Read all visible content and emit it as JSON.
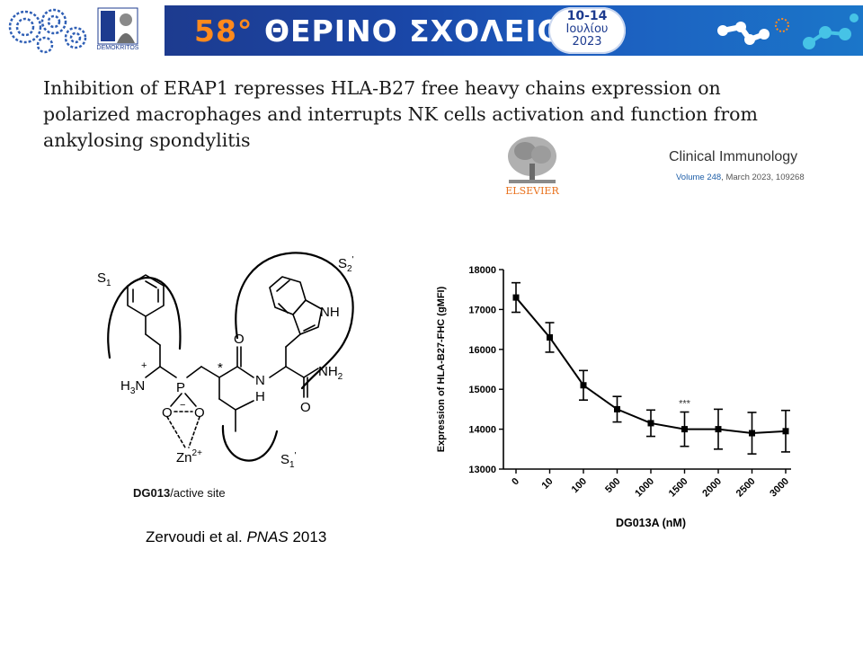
{
  "banner": {
    "number": "58°",
    "title": "ΘΕΡΙΝΟ ΣΧΟΛΕΙΟ",
    "dates": "10-14",
    "month": "Ιουλίου",
    "year": "2023",
    "logo_caption": "DEMOKRITOS",
    "colors": {
      "bar": "#1d3b8f",
      "accent": "#ff8a1c"
    }
  },
  "paper": {
    "title": "Inhibition of ERAP1 represses HLA-B27 free heavy chains expression on polarized macrophages and interrupts NK cells activation and function from ankylosing spondylitis",
    "journal": "Clinical Immunology",
    "volume_link": "Volume 248",
    "volume_rest": ", March 2023, 109268",
    "publisher": "ELSEVIER"
  },
  "chemistry": {
    "labels": {
      "s1": "S",
      "s1_sub": "1",
      "s2": "S",
      "s2_sub": "2",
      "s1p": "S",
      "s1p_sub": "1",
      "prime": "'",
      "nh": "NH",
      "h3n": "H",
      "h3n_sub": "3",
      "n": "N",
      "p": "P",
      "o1": "O",
      "o2": "O",
      "o3": "O",
      "o4": "O",
      "nh2": "NH",
      "nh2_sub": "2",
      "hn": "N",
      "h": "H",
      "zn": "Zn",
      "zn_sup": "2+",
      "star": "*",
      "plus": "+",
      "minus": "−"
    },
    "caption_bold": "DG013",
    "caption_rest": "/active site"
  },
  "citation": {
    "authors": "Zervoudi et al. ",
    "journal": "PNAS",
    "year": " 2013"
  },
  "chart_data": {
    "type": "line",
    "categories": [
      "0",
      "10",
      "100",
      "500",
      "1000",
      "1500",
      "2000",
      "2500",
      "3000"
    ],
    "values": [
      17300,
      16300,
      15100,
      14500,
      14150,
      14000,
      14000,
      13900,
      13950
    ],
    "errors": [
      370,
      370,
      370,
      320,
      330,
      430,
      500,
      520,
      520
    ],
    "annotation": {
      "text": "***",
      "category": "1500"
    },
    "xlabel": "DG013A (nM)",
    "ylabel": "Expression of HLA-B27-FHC (gMFI)",
    "ylim": [
      13000,
      18000
    ],
    "yticks": [
      13000,
      14000,
      15000,
      16000,
      17000,
      18000
    ],
    "grid": false,
    "color": "#000000"
  }
}
